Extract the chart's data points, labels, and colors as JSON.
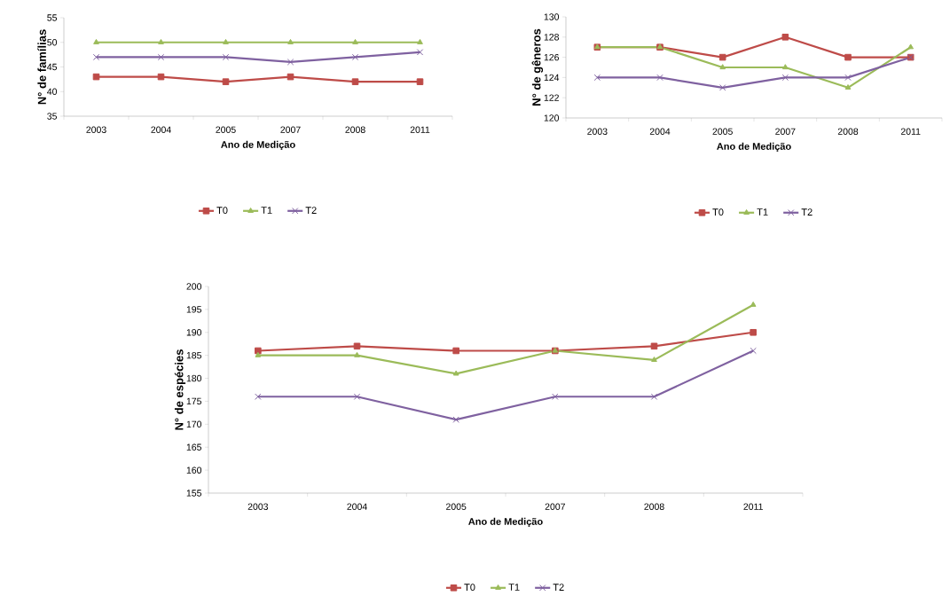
{
  "chart_data": [
    {
      "type": "line",
      "xlabel": "Ano de Medição",
      "ylabel": "N° de famílias",
      "categories": [
        "2003",
        "2004",
        "2005",
        "2007",
        "2008",
        "2011"
      ],
      "ylim": [
        35,
        55
      ],
      "yticks": [
        35,
        40,
        45,
        50,
        55
      ],
      "legend": "bottom",
      "series": [
        {
          "name": "T0",
          "color": "#be4b48",
          "marker": "square",
          "values": [
            43,
            43,
            42,
            43,
            42,
            42
          ]
        },
        {
          "name": "T1",
          "color": "#9bbb59",
          "marker": "triangle",
          "values": [
            50,
            50,
            50,
            50,
            50,
            50
          ]
        },
        {
          "name": "T2",
          "color": "#7f61a0",
          "marker": "cross",
          "values": [
            47,
            47,
            47,
            46,
            47,
            48
          ]
        }
      ]
    },
    {
      "type": "line",
      "xlabel": "Ano de Medição",
      "ylabel": "N° de gêneros",
      "categories": [
        "2003",
        "2004",
        "2005",
        "2007",
        "2008",
        "2011"
      ],
      "ylim": [
        120,
        130
      ],
      "yticks": [
        120,
        122,
        124,
        126,
        128,
        130
      ],
      "legend": "bottom",
      "series": [
        {
          "name": "T0",
          "color": "#be4b48",
          "marker": "square",
          "values": [
            127,
            127,
            126,
            128,
            126,
            126
          ]
        },
        {
          "name": "T1",
          "color": "#9bbb59",
          "marker": "triangle",
          "values": [
            127,
            127,
            125,
            125,
            123,
            127
          ]
        },
        {
          "name": "T2",
          "color": "#7f61a0",
          "marker": "cross",
          "values": [
            124,
            124,
            123,
            124,
            124,
            126
          ]
        }
      ]
    },
    {
      "type": "line",
      "xlabel": "Ano de Medição",
      "ylabel": "N° de espécies",
      "categories": [
        "2003",
        "2004",
        "2005",
        "2007",
        "2008",
        "2011"
      ],
      "ylim": [
        155,
        200
      ],
      "yticks": [
        155,
        160,
        165,
        170,
        175,
        180,
        185,
        190,
        195,
        200
      ],
      "legend": "bottom",
      "series": [
        {
          "name": "T0",
          "color": "#be4b48",
          "marker": "square",
          "values": [
            186,
            187,
            186,
            186,
            187,
            190
          ]
        },
        {
          "name": "T1",
          "color": "#9bbb59",
          "marker": "triangle",
          "values": [
            185,
            185,
            181,
            186,
            184,
            196
          ]
        },
        {
          "name": "T2",
          "color": "#7f61a0",
          "marker": "cross",
          "values": [
            176,
            176,
            171,
            176,
            176,
            186
          ]
        }
      ]
    }
  ]
}
